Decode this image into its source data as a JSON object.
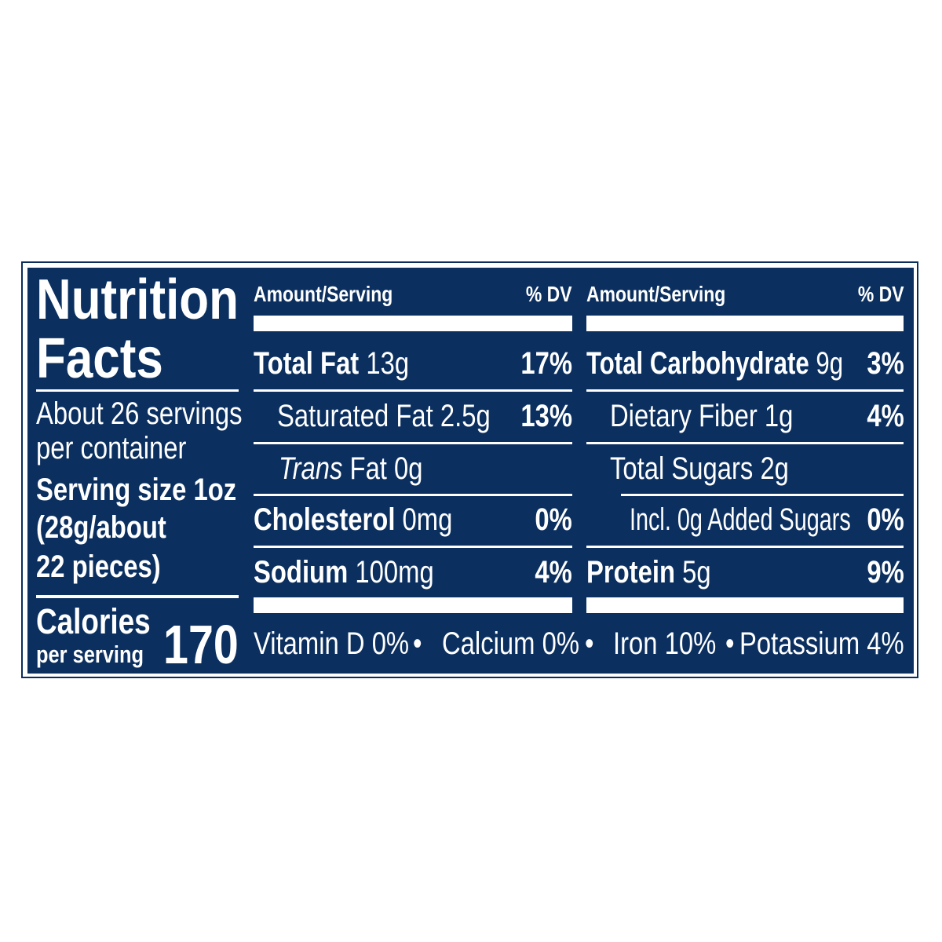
{
  "title_line1": "Nutrition",
  "title_line2": "Facts",
  "servings": {
    "line1": "About 26 servings",
    "line2": "per container"
  },
  "serving_size": {
    "line1": "Serving size 1oz",
    "line2": "(28g/about",
    "line3": "22 pieces)"
  },
  "calories": {
    "label": "Calories",
    "sublabel": "per serving",
    "value": "170"
  },
  "columns": [
    {
      "header_amount": "Amount/Serving",
      "header_dv": "% DV",
      "rows": [
        {
          "name": "Total Fat",
          "amount": "13g",
          "dv": "17%"
        },
        {
          "name": "Saturated Fat",
          "amount": "2.5g",
          "dv": "13%"
        },
        {
          "name": "Trans",
          "name_suffix": "Fat",
          "amount": "0g",
          "dv": ""
        },
        {
          "name": "Cholesterol",
          "amount": "0mg",
          "dv": "0%"
        },
        {
          "name": "Sodium",
          "amount": "100mg",
          "dv": "4%"
        }
      ]
    },
    {
      "header_amount": "Amount/Serving",
      "header_dv": "% DV",
      "rows": [
        {
          "name": "Total Carbohydrate",
          "amount": "9g",
          "dv": "3%"
        },
        {
          "name": "Dietary Fiber",
          "amount": "1g",
          "dv": "4%"
        },
        {
          "name": "Total Sugars",
          "amount": "2g",
          "dv": ""
        },
        {
          "name": "Incl. 0g Added Sugars",
          "amount": "",
          "dv": "0%"
        },
        {
          "name": "Protein",
          "amount": "5g",
          "dv": "9%"
        }
      ]
    }
  ],
  "vitamins": [
    "Vitamin D 0%",
    "Calcium 0%",
    "Iron 10%",
    "Potassium 4%"
  ],
  "separator": "•",
  "colors": {
    "background": "#0b2f5f",
    "text": "#ffffff"
  }
}
